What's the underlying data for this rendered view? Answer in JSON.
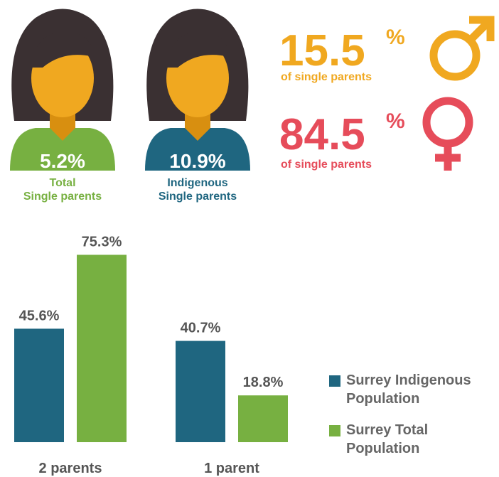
{
  "avatars": [
    {
      "value": "5.2%",
      "line1": "Total",
      "line2": "Single parents"
    },
    {
      "value": "10.9%",
      "line1": "Indigenous",
      "line2": "Single parents"
    }
  ],
  "gender": [
    {
      "value": "15.5",
      "unit": "%",
      "caption": "of single parents"
    },
    {
      "value": "84.5",
      "unit": "%",
      "caption": "of single parents"
    }
  ],
  "chart_data": {
    "type": "bar",
    "categories": [
      "2 parents",
      "1 parent"
    ],
    "series": [
      {
        "name": "Surrey Indigenous Population",
        "color": "#1f6680",
        "values": [
          45.6,
          40.7
        ],
        "value_labels": [
          "45.6%",
          "40.7%"
        ]
      },
      {
        "name": "Surrey Total Population",
        "color": "#77b041",
        "values": [
          75.3,
          18.8
        ],
        "value_labels": [
          "75.3%",
          "18.8%"
        ]
      }
    ]
  }
}
